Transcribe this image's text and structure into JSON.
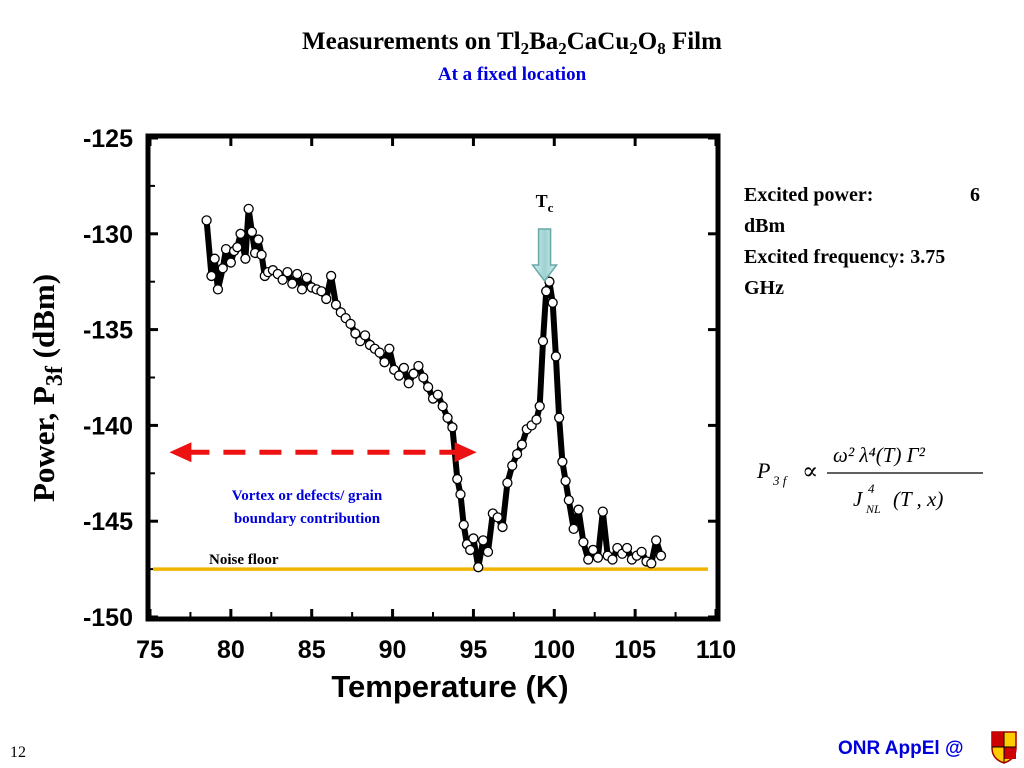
{
  "slide": {
    "title_text": "Measurements on Tl",
    "title_formula": [
      {
        "t": "Tl"
      },
      {
        "s": "2"
      },
      {
        "t": "Ba"
      },
      {
        "s": "2"
      },
      {
        "t": "CaCu"
      },
      {
        "s": "2"
      },
      {
        "t": "O"
      },
      {
        "s": "8"
      },
      {
        "t": " Film"
      }
    ],
    "title_prefix": "Measurements on ",
    "subtitle": "At a fixed location",
    "page_number": "12",
    "footer": "ONR AppEl @"
  },
  "info": {
    "power_label": "Excited power:",
    "power_value": "6",
    "power_unit": "dBm",
    "freq_line": "Excited frequency: 3.75",
    "freq_unit": "GHz"
  },
  "formula": {
    "lhs": "P",
    "lhs_sub": "3 f",
    "relation": "∝",
    "numerator": "ω² λ⁴(T) Γ²",
    "denominator_main": "J",
    "denominator_sup": "4",
    "denominator_sub": "NL",
    "denominator_args": "(T , x)"
  },
  "chart_data": {
    "type": "line",
    "xlabel": "Temperature (K)",
    "ylabel_main": "Power, P",
    "ylabel_sub": "3f",
    "ylabel_unit": " (dBm)",
    "xlim": [
      75,
      110
    ],
    "ylim": [
      -150,
      -125
    ],
    "xticks": [
      75,
      80,
      85,
      90,
      95,
      100,
      105,
      110
    ],
    "yticks": [
      -125,
      -130,
      -135,
      -140,
      -145,
      -150
    ],
    "colors": {
      "line": "#000000",
      "marker_fill": "#ffffff",
      "noise": "#f0b400",
      "arrow": "#ee1111",
      "tc_arrow": "#a8d8d8"
    },
    "series": [
      {
        "x": [
          78.5,
          78.8,
          79.0,
          79.2,
          79.5,
          79.7,
          80.0,
          80.2,
          80.4,
          80.6,
          80.9,
          81.1,
          81.3,
          81.5,
          81.7,
          81.9,
          82.1,
          82.3,
          82.6,
          82.9,
          83.2,
          83.5,
          83.8,
          84.1,
          84.4,
          84.7,
          85.0,
          85.3,
          85.6,
          85.9,
          86.2,
          86.5,
          86.8,
          87.1,
          87.4,
          87.7,
          88.0,
          88.3,
          88.6,
          88.9,
          89.2,
          89.5,
          89.8,
          90.1,
          90.4,
          90.7,
          91.0,
          91.3,
          91.6,
          91.9,
          92.2,
          92.5,
          92.8,
          93.1,
          93.4,
          93.7,
          94.0,
          94.2,
          94.4,
          94.6,
          94.8,
          95.0,
          95.3,
          95.6,
          95.9,
          96.2,
          96.5,
          96.8,
          97.1,
          97.4,
          97.7,
          98.0,
          98.3,
          98.6,
          98.9,
          99.1,
          99.3,
          99.5,
          99.7,
          99.9,
          100.1,
          100.3,
          100.5,
          100.7,
          100.9,
          101.2,
          101.5,
          101.8,
          102.1,
          102.4,
          102.7,
          103.0,
          103.3,
          103.6,
          103.9,
          104.2,
          104.5,
          104.8,
          105.1,
          105.4,
          105.7,
          106.0,
          106.3,
          106.6
        ],
        "values": [
          -129.3,
          -132.2,
          -131.3,
          -132.9,
          -131.8,
          -130.8,
          -131.5,
          -130.9,
          -130.7,
          -130.0,
          -131.3,
          -128.7,
          -129.9,
          -131.0,
          -130.3,
          -131.1,
          -132.2,
          -132.0,
          -131.9,
          -132.1,
          -132.4,
          -132.0,
          -132.6,
          -132.1,
          -132.9,
          -132.3,
          -132.8,
          -132.9,
          -133.0,
          -133.4,
          -132.2,
          -133.7,
          -134.1,
          -134.4,
          -134.7,
          -135.2,
          -135.6,
          -135.3,
          -135.8,
          -136.0,
          -136.2,
          -136.7,
          -136.0,
          -137.1,
          -137.4,
          -137.0,
          -137.8,
          -137.3,
          -136.9,
          -137.5,
          -138.0,
          -138.6,
          -138.4,
          -139.0,
          -139.6,
          -140.1,
          -142.8,
          -143.6,
          -145.2,
          -146.2,
          -146.5,
          -145.9,
          -147.4,
          -146.0,
          -146.6,
          -144.6,
          -144.8,
          -145.3,
          -143.0,
          -142.1,
          -141.5,
          -141.0,
          -140.2,
          -140.0,
          -139.7,
          -139.0,
          -135.6,
          -133.0,
          -132.5,
          -133.6,
          -136.4,
          -139.6,
          -141.9,
          -142.9,
          -143.9,
          -145.4,
          -144.4,
          -146.1,
          -147.0,
          -146.5,
          -146.9,
          -144.5,
          -146.8,
          -147.0,
          -146.4,
          -146.7,
          -146.4,
          -147.0,
          -146.8,
          -146.6,
          -147.1,
          -147.2,
          -146.0,
          -146.8
        ]
      }
    ],
    "noise_floor": -147.5,
    "noise_label": "Noise floor",
    "tc_label": "T",
    "tc_sub": "c",
    "tc_x": 99.4,
    "arrow_x": [
      76.2,
      95.2
    ],
    "arrow_y": -141.4,
    "annotation_line1": "Vortex or defects/ grain",
    "annotation_line2": "boundary  contribution"
  }
}
